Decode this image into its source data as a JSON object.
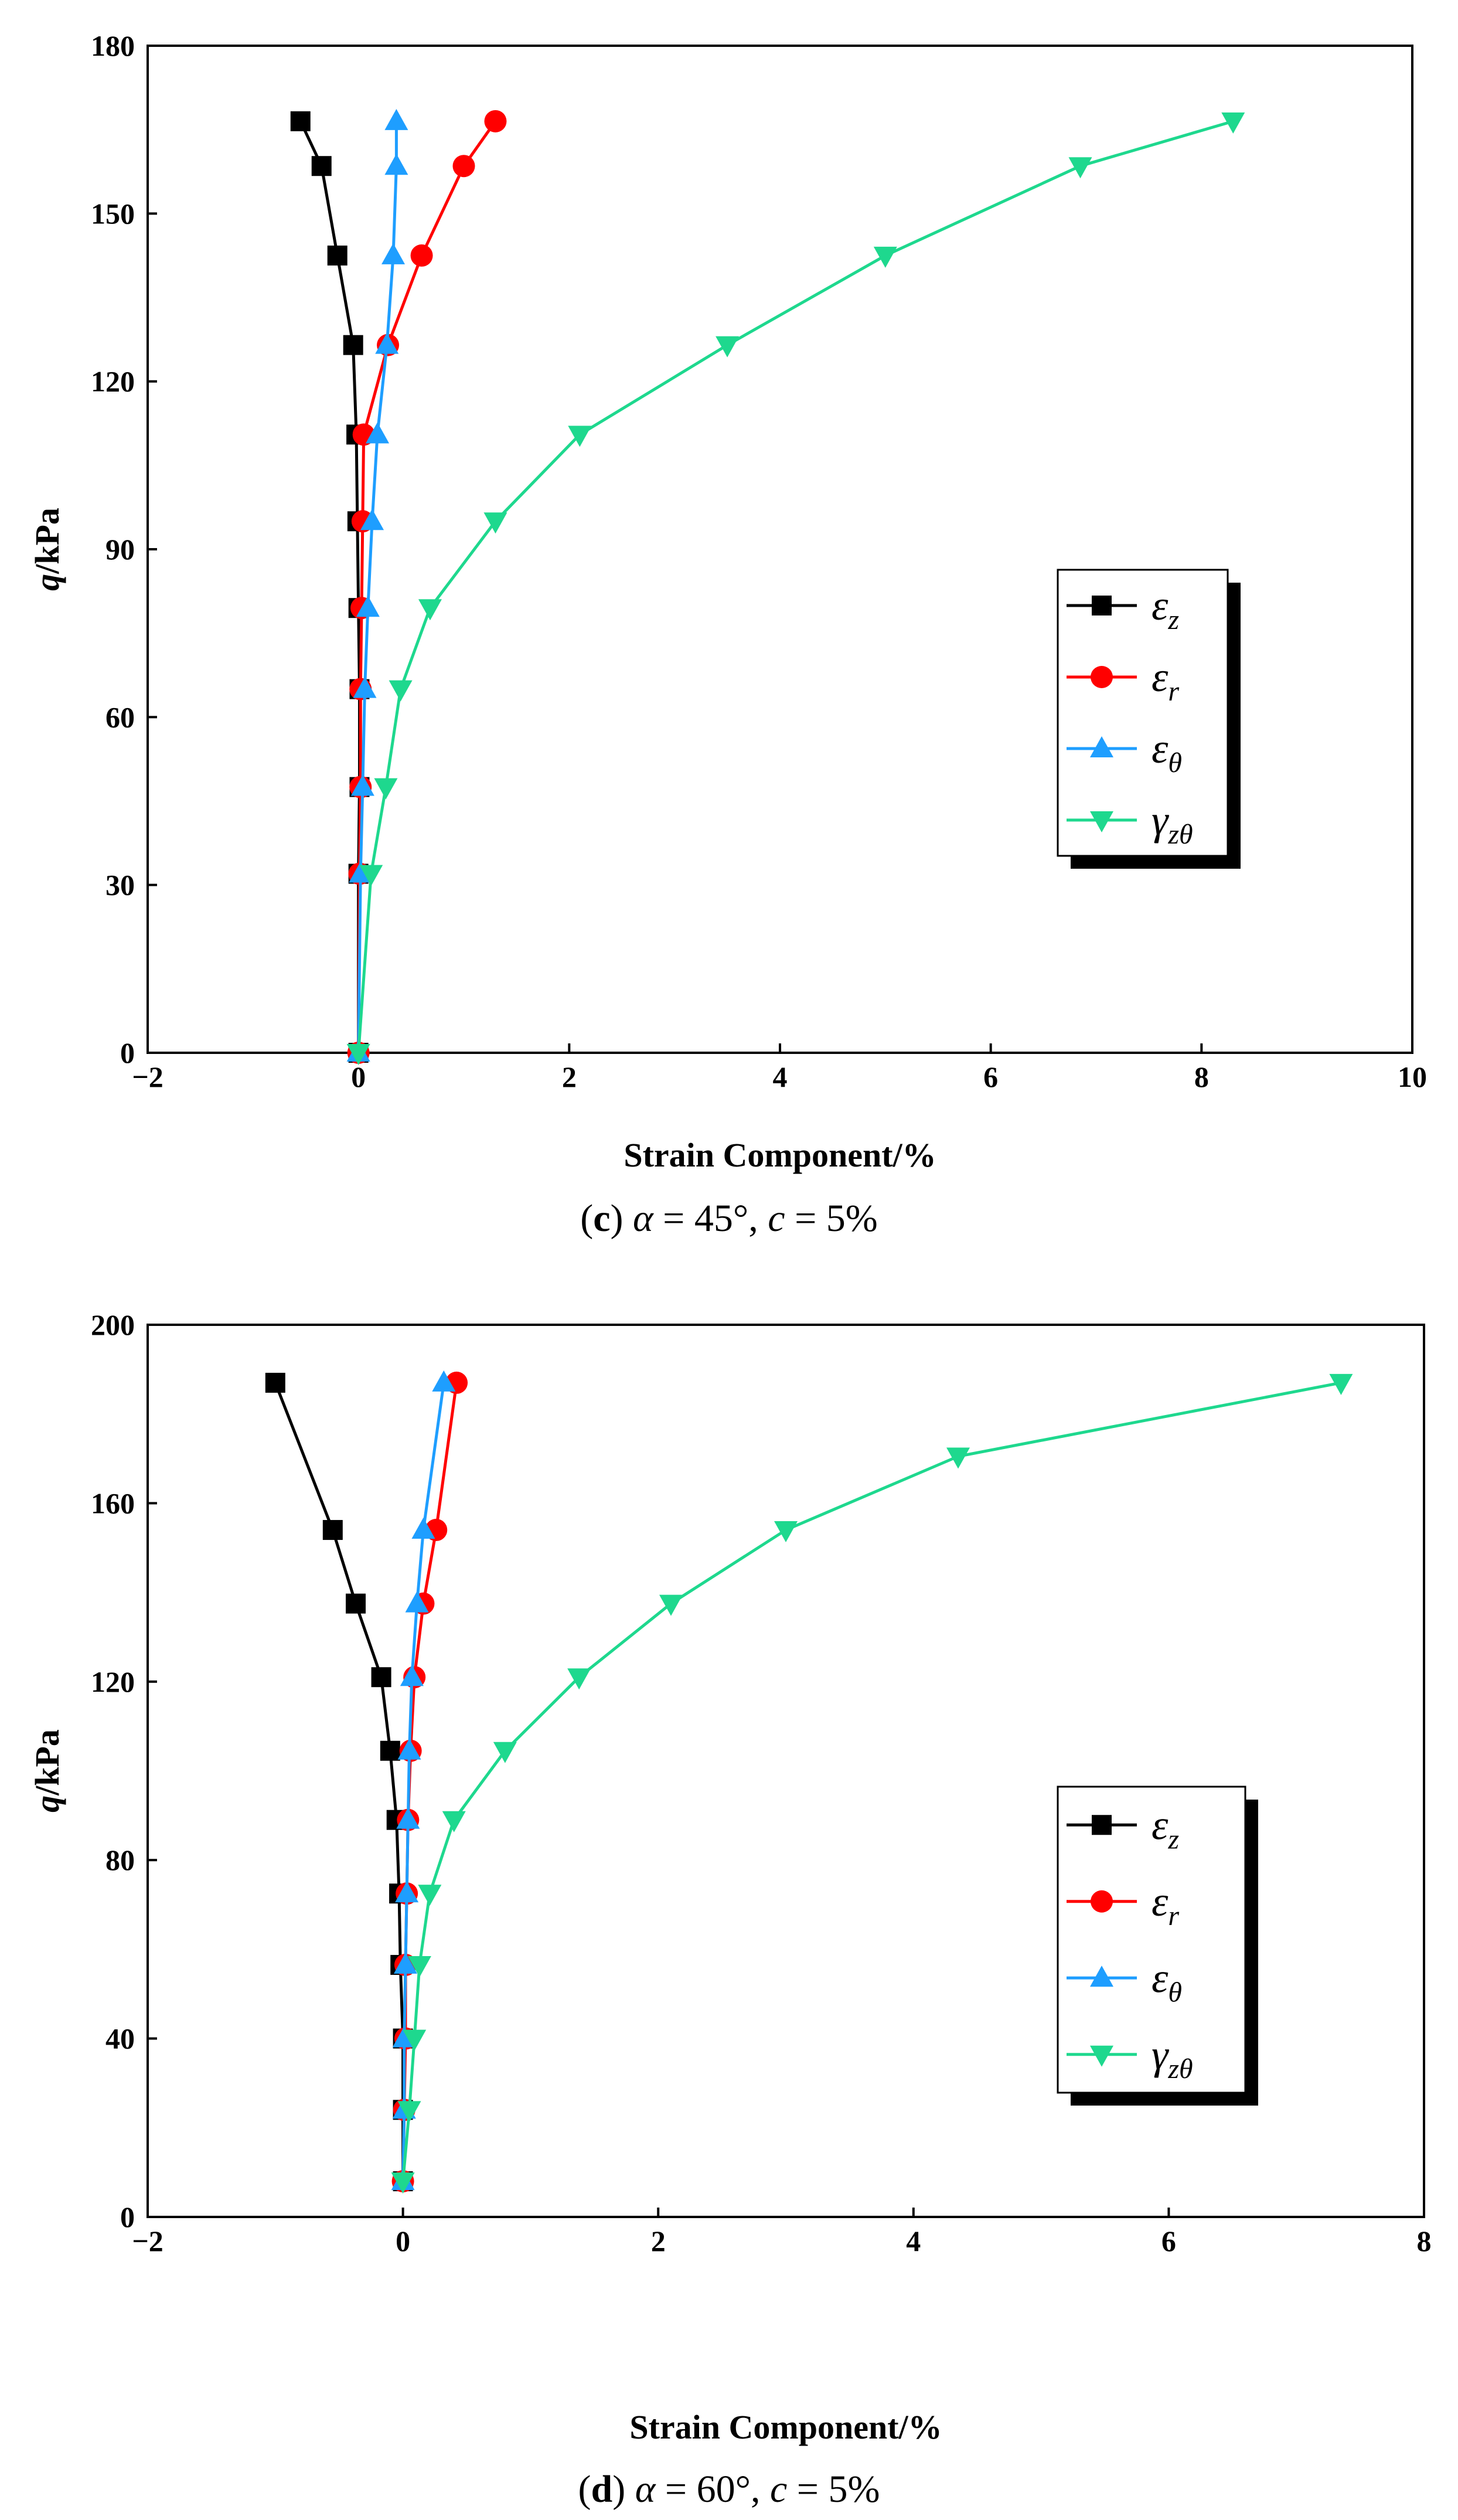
{
  "chart_data": [
    {
      "type": "line",
      "panel": "c",
      "caption": {
        "letter": "c",
        "alpha_sym": "α",
        "alpha_val": " = 45°, ",
        "c_sym": "c",
        "c_val": " = 5%"
      },
      "xlabel": "Strain Component/%",
      "ylabel_q": "q",
      "ylabel_unit": "/kPa",
      "xlim": [
        -2,
        10
      ],
      "ylim": [
        0,
        180
      ],
      "xticks": [
        -2,
        0,
        2,
        4,
        6,
        8,
        10
      ],
      "yticks": [
        0,
        30,
        60,
        90,
        120,
        150,
        180
      ],
      "legend_position": "center-right",
      "series": [
        {
          "name": "εz",
          "symbol": "ε",
          "sub": "z",
          "color": "#000000",
          "marker": "square",
          "x": [
            0,
            0,
            0.01,
            0.01,
            0,
            -0.01,
            -0.02,
            -0.05,
            -0.2,
            -0.35,
            -0.55
          ],
          "y": [
            0,
            32,
            47.5,
            65,
            79.5,
            95,
            110.5,
            126.5,
            142.5,
            158.5,
            166.5
          ]
        },
        {
          "name": "εr",
          "symbol": "ε",
          "sub": "r",
          "color": "#ff0000",
          "marker": "circle",
          "x": [
            0,
            0.01,
            0.02,
            0.02,
            0.03,
            0.04,
            0.05,
            0.28,
            0.6,
            1.0,
            1.3
          ],
          "y": [
            0,
            32,
            47.5,
            65,
            79.5,
            95,
            110.5,
            126.5,
            142.5,
            158.5,
            166.5
          ]
        },
        {
          "name": "εθ",
          "symbol": "ε",
          "sub": "θ",
          "color": "#1e9eff",
          "marker": "triangle-up",
          "x": [
            0,
            0.02,
            0.04,
            0.06,
            0.09,
            0.13,
            0.18,
            0.27,
            0.33,
            0.36,
            0.36
          ],
          "y": [
            0,
            32,
            47.5,
            65,
            79.5,
            95,
            110.5,
            126.5,
            142.5,
            158.5,
            166.5
          ]
        },
        {
          "name": "γzθ",
          "symbol": "γ",
          "sub": "zθ",
          "color": "#1ed88e",
          "marker": "triangle-down",
          "x": [
            0,
            0.12,
            0.26,
            0.4,
            0.68,
            1.3,
            2.1,
            3.5,
            5.0,
            6.85,
            8.3
          ],
          "y": [
            0,
            32,
            47.5,
            65,
            79.5,
            95,
            110.5,
            126.5,
            142.5,
            158.5,
            166.5
          ]
        }
      ]
    },
    {
      "type": "line",
      "panel": "d",
      "caption": {
        "letter": "d",
        "alpha_sym": "α",
        "alpha_val": " = 60°, ",
        "c_sym": "c",
        "c_val": " = 5%"
      },
      "xlabel": "Strain Component/%",
      "ylabel_q": "q",
      "ylabel_unit": "/kPa",
      "xlim": [
        -2,
        8
      ],
      "ylim": [
        0,
        200
      ],
      "xticks": [
        -2,
        0,
        2,
        4,
        6,
        8
      ],
      "yticks": [
        0,
        40,
        80,
        120,
        160,
        200
      ],
      "legend_position": "center-right",
      "series": [
        {
          "name": "εz",
          "symbol": "ε",
          "sub": "z",
          "color": "#000000",
          "marker": "square",
          "x": [
            0,
            0,
            0,
            -0.02,
            -0.03,
            -0.05,
            -0.1,
            -0.17,
            -0.37,
            -0.55,
            -1.0
          ],
          "y": [
            8,
            24,
            40,
            56.5,
            72.5,
            89,
            104.5,
            121,
            137.5,
            154,
            187
          ]
        },
        {
          "name": "εr",
          "symbol": "ε",
          "sub": "r",
          "color": "#ff0000",
          "marker": "circle",
          "x": [
            0,
            0.01,
            0.02,
            0.02,
            0.03,
            0.04,
            0.06,
            0.09,
            0.16,
            0.26,
            0.42
          ],
          "y": [
            8,
            24,
            40,
            56.5,
            72.5,
            89,
            104.5,
            121,
            137.5,
            154,
            187
          ]
        },
        {
          "name": "εθ",
          "symbol": "ε",
          "sub": "θ",
          "color": "#1e9eff",
          "marker": "triangle-up",
          "x": [
            0,
            0.01,
            0.01,
            0.02,
            0.03,
            0.04,
            0.05,
            0.07,
            0.11,
            0.16,
            0.32
          ],
          "y": [
            8,
            24,
            40,
            56.5,
            72.5,
            89,
            104.5,
            121,
            137.5,
            154,
            187
          ]
        },
        {
          "name": "γzθ",
          "symbol": "γ",
          "sub": "zθ",
          "color": "#1ed88e",
          "marker": "triangle-down",
          "x": [
            0,
            0.05,
            0.09,
            0.13,
            0.21,
            0.4,
            0.8,
            1.38,
            2.1,
            3.0,
            4.35,
            7.35
          ],
          "y": [
            8,
            24,
            40,
            56.5,
            72.5,
            89,
            104.5,
            121,
            137.5,
            154,
            170.5,
            187
          ]
        }
      ]
    }
  ]
}
